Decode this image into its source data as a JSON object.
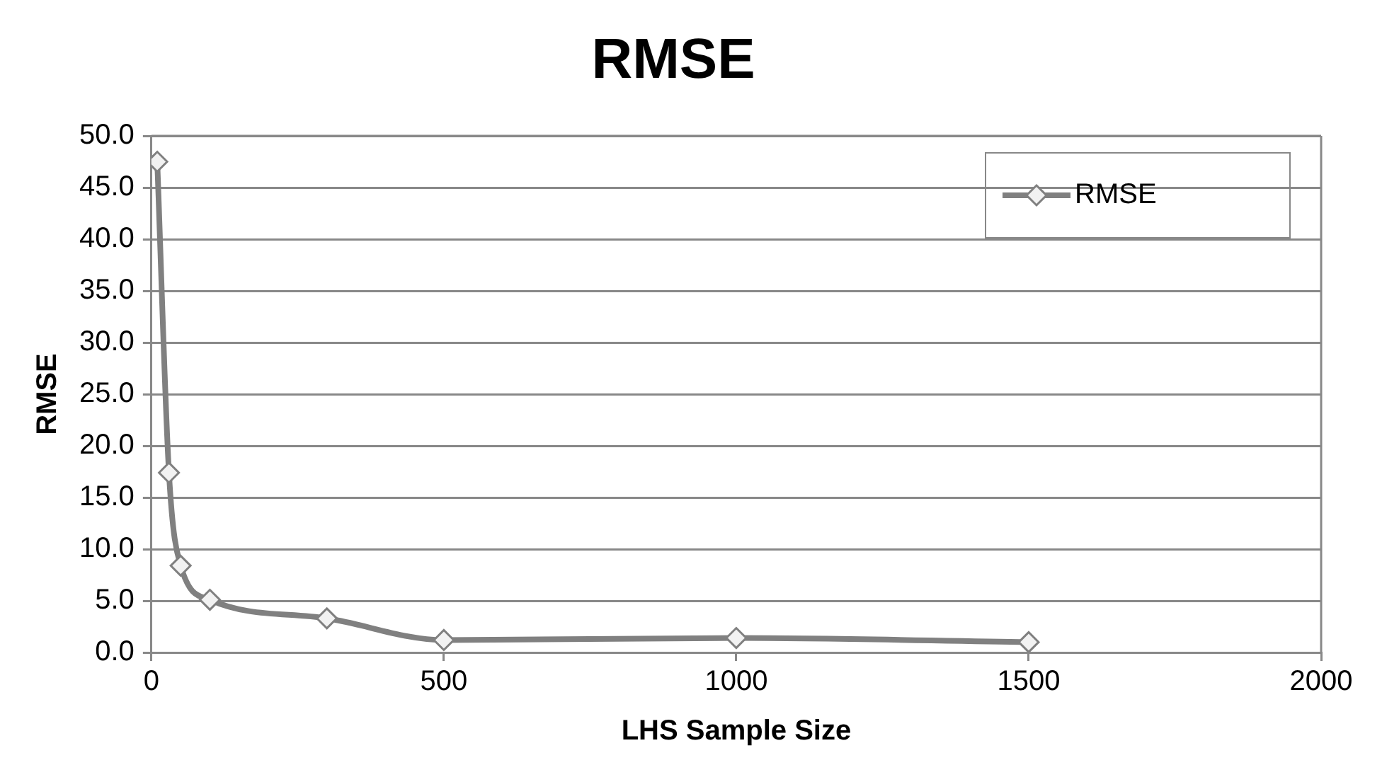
{
  "chart_data": {
    "type": "line",
    "title": "RMSE",
    "xlabel": "LHS Sample Size",
    "ylabel": "RMSE",
    "x": [
      10,
      30,
      50,
      100,
      300,
      500,
      1000,
      1500
    ],
    "series": [
      {
        "name": "RMSE",
        "color": "#808080",
        "values": [
          47.5,
          17.4,
          8.4,
          5.1,
          3.3,
          1.2,
          1.4,
          1.0
        ]
      }
    ],
    "xlim": [
      0,
      2000
    ],
    "xticks": [
      0,
      500,
      1000,
      1500,
      2000
    ],
    "ylim": [
      0,
      50
    ],
    "yticks": [
      {
        "value": 0,
        "label": "0.0"
      },
      {
        "value": 5,
        "label": "5.0"
      },
      {
        "value": 10,
        "label": "10.0"
      },
      {
        "value": 15,
        "label": "15.0"
      },
      {
        "value": 20,
        "label": "20.0"
      },
      {
        "value": 25,
        "label": "25.0"
      },
      {
        "value": 30,
        "label": "30.0"
      },
      {
        "value": 35,
        "label": "35.0"
      },
      {
        "value": 40,
        "label": "40.0"
      },
      {
        "value": 45,
        "label": "45.0"
      },
      {
        "value": 50,
        "label": "50.0"
      }
    ],
    "grid": "y",
    "legend": "top right",
    "marker": "diamond",
    "line_style": "solid"
  }
}
